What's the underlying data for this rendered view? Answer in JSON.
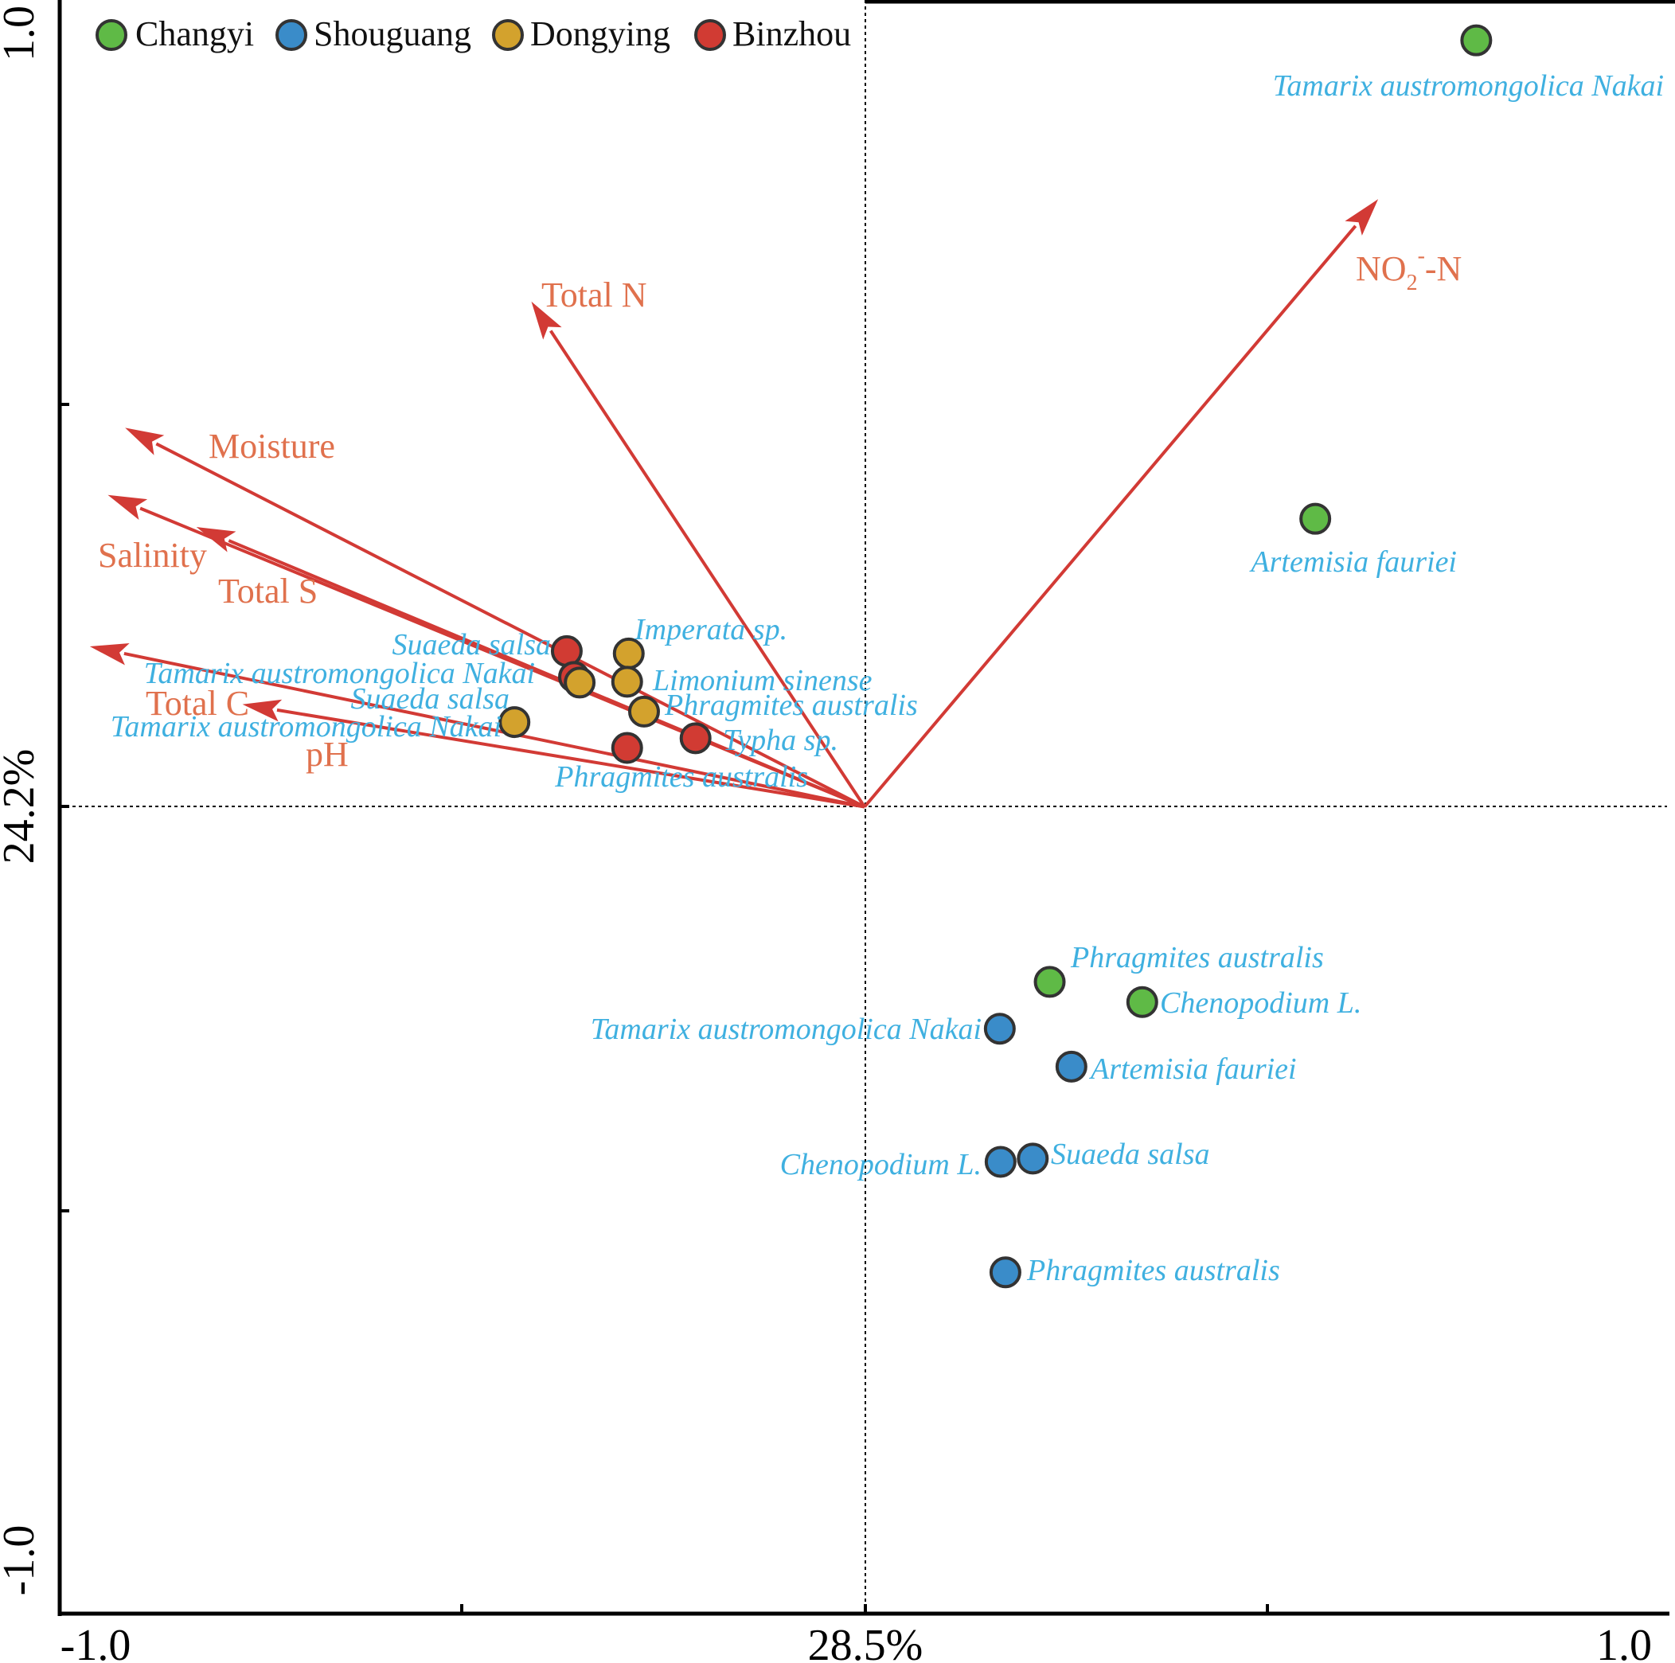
{
  "chart_data": {
    "type": "scatter",
    "subtype": "rda-biplot",
    "xlabel": "28.5%",
    "ylabel": "24.2%",
    "xlim": [
      -1.0,
      1.0
    ],
    "ylim": [
      -1.0,
      1.0
    ],
    "x_tick_labels": [
      "-1.0",
      "1.0"
    ],
    "y_tick_labels": [
      "-1.0",
      "1.0"
    ],
    "legend_position": "top-left",
    "colors": {
      "arrow": "#d23a35",
      "arrow_label": "#e0714d",
      "point_label": "#3fb0e0",
      "outline": "#333333"
    },
    "legend": [
      {
        "name": "Changyi",
        "color": "#5fba46"
      },
      {
        "name": "Shouguang",
        "color": "#3a8cc9"
      },
      {
        "name": "Dongying",
        "color": "#d3a22d"
      },
      {
        "name": "Binzhou",
        "color": "#d13b33"
      }
    ],
    "arrows": [
      {
        "id": "total-n",
        "label": "Total N",
        "sub": "",
        "x": -0.39,
        "y": 0.59
      },
      {
        "id": "no2-n",
        "label": "NO",
        "sub": "2",
        "sup": "-",
        "suffix": "-N",
        "x": 0.61,
        "y": 0.72
      },
      {
        "id": "moisture",
        "label": "Moisture",
        "sub": "",
        "x": -0.88,
        "y": 0.45
      },
      {
        "id": "salinity",
        "label": "Salinity",
        "sub": "",
        "x": -0.9,
        "y": 0.37
      },
      {
        "id": "total-s",
        "label": "Total S",
        "sub": "",
        "x": -0.79,
        "y": 0.33
      },
      {
        "id": "total-c",
        "label": "Total C",
        "sub": "",
        "x": -0.92,
        "y": 0.19
      },
      {
        "id": "ph",
        "label": "pH",
        "sub": "",
        "x": -0.73,
        "y": 0.12
      }
    ],
    "points": [
      {
        "label": "Tamarix austromongolica Nakai",
        "site": "Changyi",
        "x": 0.76,
        "y": 0.95
      },
      {
        "label": "Artemisia fauriei",
        "site": "Changyi",
        "x": 0.56,
        "y": 0.357
      },
      {
        "label": "Phragmites australis",
        "site": "Changyi",
        "x": 0.23,
        "y": -0.217
      },
      {
        "label": "Chenopodium L.",
        "site": "Changyi",
        "x": 0.345,
        "y": -0.242
      },
      {
        "label": "Tamarix austromongolica Nakai",
        "site": "Shouguang",
        "x": 0.168,
        "y": -0.275
      },
      {
        "label": "Artemisia fauriei",
        "site": "Shouguang",
        "x": 0.257,
        "y": -0.322
      },
      {
        "label": "Chenopodium L.",
        "site": "Shouguang",
        "x": 0.169,
        "y": -0.44
      },
      {
        "label": "Suaeda salsa",
        "site": "Shouguang",
        "x": 0.209,
        "y": -0.436
      },
      {
        "label": "Phragmites australis",
        "site": "Shouguang",
        "x": 0.175,
        "y": -0.577
      },
      {
        "label": "Suaeda salsa",
        "site": "Binzhou",
        "x": -0.37,
        "y": 0.193
      },
      {
        "label": "Tamarix austromongolica Nakai",
        "site": "Binzhou",
        "x": -0.361,
        "y": 0.161
      },
      {
        "label": "Suaeda salsa",
        "site": "Dongying",
        "x": -0.354,
        "y": 0.154
      },
      {
        "label": "Imperata sp.",
        "site": "Dongying",
        "x": -0.293,
        "y": 0.19
      },
      {
        "label": "Limonium sinense",
        "site": "Dongying",
        "x": -0.295,
        "y": 0.155
      },
      {
        "label": "Phragmites australis",
        "site": "Dongying",
        "x": -0.274,
        "y": 0.118
      },
      {
        "label": "Typha sp.",
        "site": "Binzhou",
        "x": -0.21,
        "y": 0.085
      },
      {
        "label": "Phragmites australis",
        "site": "Binzhou",
        "x": -0.295,
        "y": 0.073
      },
      {
        "label": "Tamarix austromongolica Nakai",
        "site": "Dongying",
        "x": -0.435,
        "y": 0.105
      }
    ]
  }
}
